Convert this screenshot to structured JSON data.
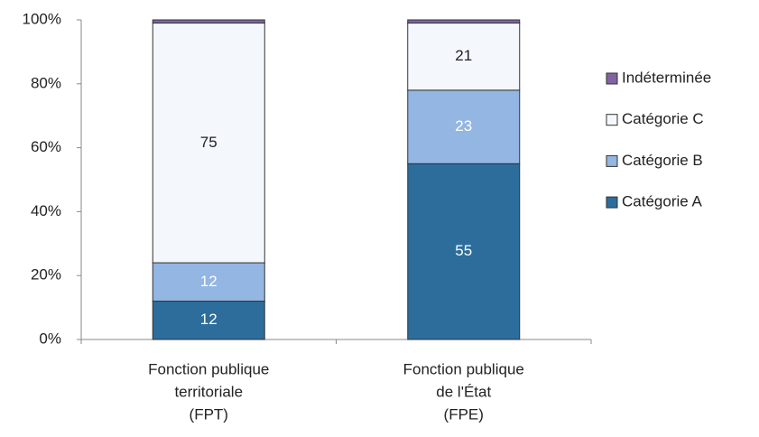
{
  "chart_data": {
    "type": "stacked_bar",
    "categories": [
      [
        "Fonction publique",
        "territoriale",
        "(FPT)"
      ],
      [
        "Fonction publique",
        "de l'État",
        "(FPE)"
      ]
    ],
    "series": [
      {
        "name": "Catégorie A",
        "color": "#2c6d9c",
        "label_color": "#ffffff",
        "show_labels": true,
        "values": [
          12,
          55
        ]
      },
      {
        "name": "Catégorie B",
        "color": "#93b6e2",
        "label_color": "#ffffff",
        "show_labels": true,
        "values": [
          12,
          23
        ]
      },
      {
        "name": "Catégorie C",
        "color": "#f4f7fc",
        "label_color": "#222222",
        "show_labels": true,
        "values": [
          75,
          21
        ]
      },
      {
        "name": "Indéterminée",
        "color": "#8064a2",
        "label_color": "#222222",
        "show_labels": false,
        "values": [
          1,
          1
        ]
      }
    ],
    "ylim": [
      0,
      100
    ],
    "yticks": [
      {
        "value": 0,
        "label": "0%"
      },
      {
        "value": 20,
        "label": "20%"
      },
      {
        "value": 40,
        "label": "40%"
      },
      {
        "value": 60,
        "label": "60%"
      },
      {
        "value": 80,
        "label": "80%"
      },
      {
        "value": 100,
        "label": "100%"
      }
    ],
    "legend": "right"
  }
}
